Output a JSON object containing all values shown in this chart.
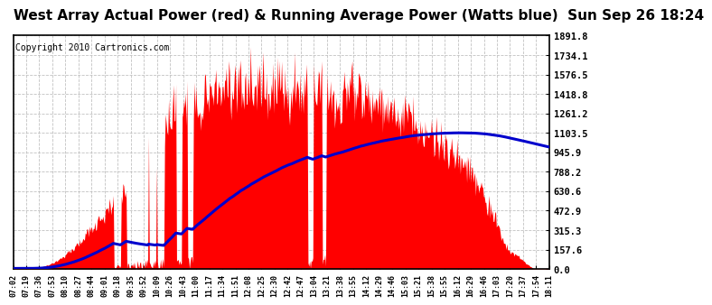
{
  "title": "West Array Actual Power (red) & Running Average Power (Watts blue)  Sun Sep 26 18:24",
  "copyright": "Copyright 2010 Cartronics.com",
  "yticks": [
    0.0,
    157.6,
    315.3,
    472.9,
    630.6,
    788.2,
    945.9,
    1103.5,
    1261.2,
    1418.8,
    1576.5,
    1734.1,
    1891.8
  ],
  "ymax": 1891.8,
  "ymin": 0.0,
  "bg_color": "#ffffff",
  "plot_bg_color": "#ffffff",
  "grid_color": "#bbbbbb",
  "bar_color": "#ff0000",
  "avg_color": "#0000cc",
  "title_fontsize": 11,
  "copyright_fontsize": 7,
  "xtick_labels": [
    "07:02",
    "07:19",
    "07:36",
    "07:53",
    "08:10",
    "08:27",
    "08:44",
    "09:01",
    "09:18",
    "09:35",
    "09:52",
    "10:09",
    "10:26",
    "10:43",
    "11:00",
    "11:17",
    "11:34",
    "11:51",
    "12:08",
    "12:25",
    "12:30",
    "12:42",
    "12:47",
    "13:04",
    "13:21",
    "13:38",
    "13:55",
    "14:12",
    "14:29",
    "14:46",
    "15:03",
    "15:21",
    "15:38",
    "15:55",
    "16:12",
    "16:29",
    "16:46",
    "17:03",
    "17:20",
    "17:37",
    "17:54",
    "18:11"
  ]
}
